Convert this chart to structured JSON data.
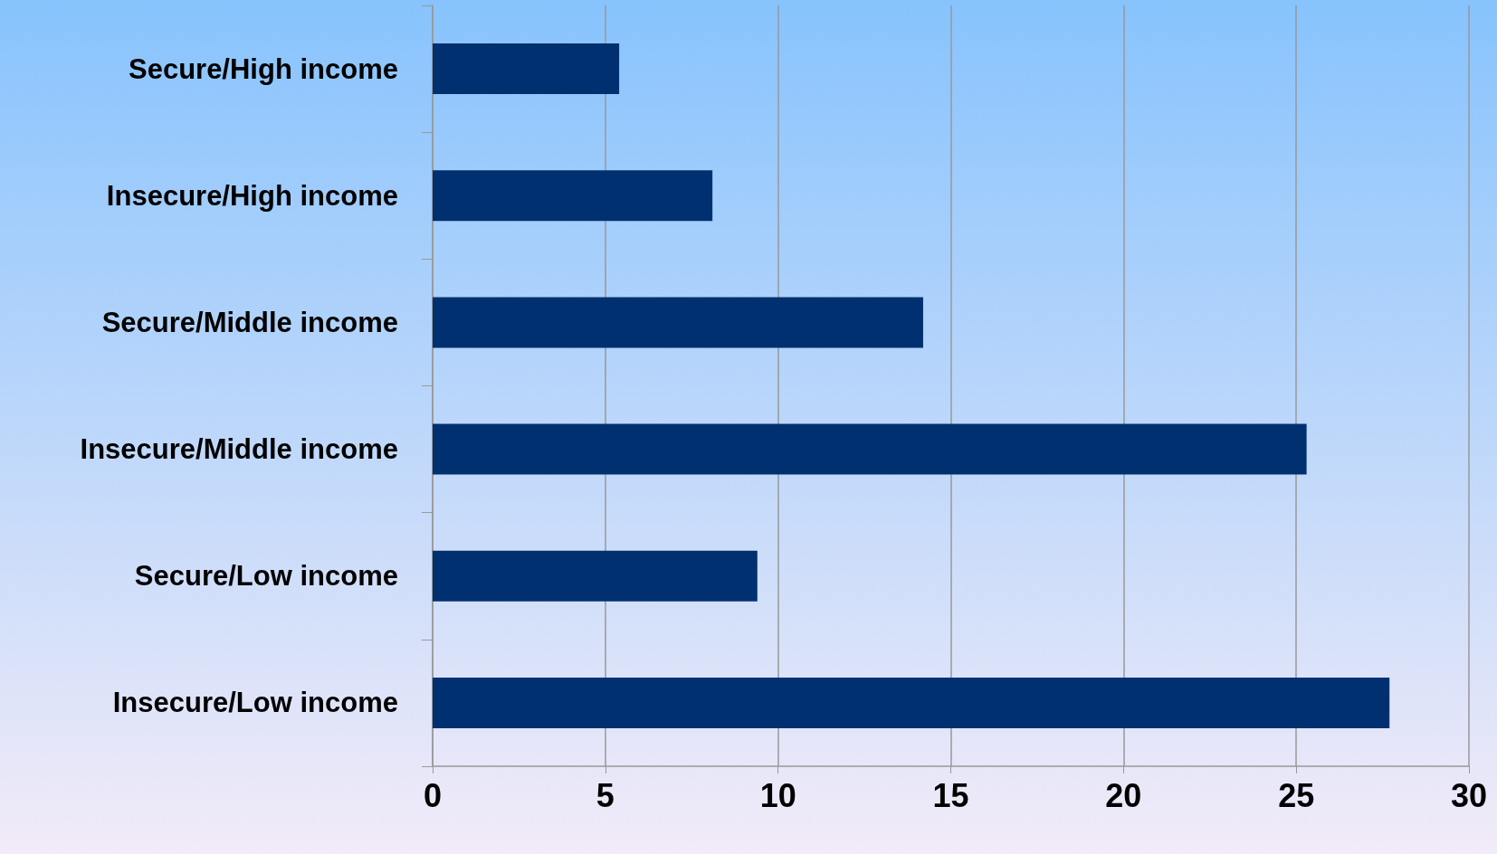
{
  "chart_data": {
    "type": "bar",
    "orientation": "horizontal",
    "categories": [
      "Secure/High income",
      "Insecure/High income",
      "Secure/Middle income",
      "Insecure/Middle income",
      "Secure/Low income",
      "Insecure/Low income"
    ],
    "values": [
      5.4,
      8.1,
      14.2,
      25.3,
      9.4,
      27.7
    ],
    "color": "#003070",
    "xlim": [
      0,
      30
    ],
    "xticks": [
      0,
      5,
      10,
      15,
      20,
      25,
      30
    ],
    "grid": "x"
  }
}
